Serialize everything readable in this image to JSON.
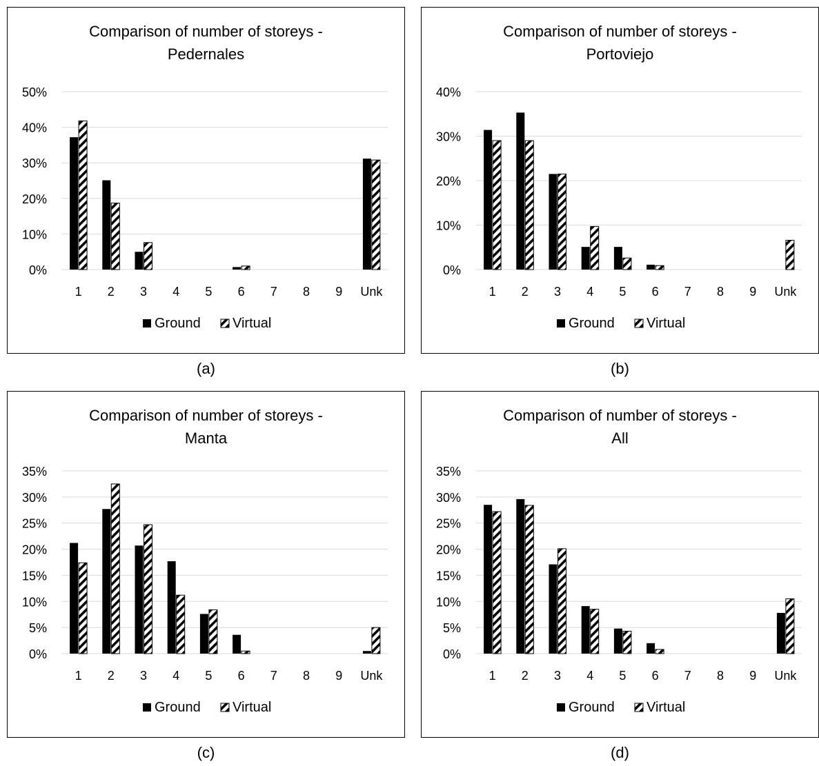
{
  "chart_data": [
    {
      "type": "bar",
      "title": "Comparison of number of storeys - Pedernales",
      "title_lines": [
        "Comparison of number of storeys -",
        "Pedernales"
      ],
      "caption": "(a)",
      "categories": [
        "1",
        "2",
        "3",
        "4",
        "5",
        "6",
        "7",
        "8",
        "9",
        "Unk"
      ],
      "ylim": [
        0,
        0.5
      ],
      "yticks": [
        0,
        0.1,
        0.2,
        0.3,
        0.4,
        0.5
      ],
      "ytick_labels": [
        "0%",
        "10%",
        "20%",
        "30%",
        "40%",
        "50%"
      ],
      "series": [
        {
          "name": "Ground",
          "values": [
            0.372,
            0.251,
            0.05,
            0,
            0,
            0.007,
            0,
            0,
            0,
            0.312
          ]
        },
        {
          "name": "Virtual",
          "values": [
            0.418,
            0.187,
            0.076,
            0,
            0,
            0.01,
            0,
            0,
            0,
            0.308
          ]
        }
      ],
      "grid": true,
      "legend": "bottom"
    },
    {
      "type": "bar",
      "title": "Comparison of number of storeys - Portoviejo",
      "title_lines": [
        "Comparison of number of storeys -",
        "Portoviejo"
      ],
      "caption": "(b)",
      "categories": [
        "1",
        "2",
        "3",
        "4",
        "5",
        "6",
        "7",
        "8",
        "9",
        "Unk"
      ],
      "ylim": [
        0,
        0.4
      ],
      "yticks": [
        0,
        0.1,
        0.2,
        0.3,
        0.4
      ],
      "ytick_labels": [
        "0%",
        "10%",
        "20%",
        "30%",
        "40%"
      ],
      "series": [
        {
          "name": "Ground",
          "values": [
            0.314,
            0.353,
            0.215,
            0.051,
            0.051,
            0.011,
            0,
            0,
            0,
            0
          ]
        },
        {
          "name": "Virtual",
          "values": [
            0.29,
            0.29,
            0.215,
            0.097,
            0.026,
            0.009,
            0,
            0,
            0,
            0.066
          ]
        }
      ],
      "grid": true,
      "legend": "bottom"
    },
    {
      "type": "bar",
      "title": "Comparison of number of storeys - Manta",
      "title_lines": [
        "Comparison of number of storeys -",
        "Manta"
      ],
      "caption": "(c)",
      "categories": [
        "1",
        "2",
        "3",
        "4",
        "5",
        "6",
        "7",
        "8",
        "9",
        "Unk"
      ],
      "ylim": [
        0,
        0.35
      ],
      "yticks": [
        0,
        0.05,
        0.1,
        0.15,
        0.2,
        0.25,
        0.3,
        0.35
      ],
      "ytick_labels": [
        "0%",
        "5%",
        "10%",
        "15%",
        "20%",
        "25%",
        "30%",
        "35%"
      ],
      "series": [
        {
          "name": "Ground",
          "values": [
            0.212,
            0.277,
            0.207,
            0.177,
            0.076,
            0.036,
            0,
            0,
            0,
            0.005
          ]
        },
        {
          "name": "Virtual",
          "values": [
            0.174,
            0.325,
            0.247,
            0.112,
            0.084,
            0.005,
            0,
            0,
            0,
            0.05
          ]
        }
      ],
      "grid": true,
      "legend": "bottom"
    },
    {
      "type": "bar",
      "title": "Comparison of number of storeys - All",
      "title_lines": [
        "Comparison of number of storeys -",
        "All"
      ],
      "caption": "(d)",
      "categories": [
        "1",
        "2",
        "3",
        "4",
        "5",
        "6",
        "7",
        "8",
        "9",
        "Unk"
      ],
      "ylim": [
        0,
        0.35
      ],
      "yticks": [
        0,
        0.05,
        0.1,
        0.15,
        0.2,
        0.25,
        0.3,
        0.35
      ],
      "ytick_labels": [
        "0%",
        "5%",
        "10%",
        "15%",
        "20%",
        "25%",
        "30%",
        "35%"
      ],
      "series": [
        {
          "name": "Ground",
          "values": [
            0.285,
            0.296,
            0.171,
            0.091,
            0.048,
            0.02,
            0,
            0,
            0,
            0.078
          ]
        },
        {
          "name": "Virtual",
          "values": [
            0.272,
            0.284,
            0.201,
            0.085,
            0.043,
            0.008,
            0,
            0,
            0,
            0.105
          ]
        }
      ],
      "grid": true,
      "legend": "bottom"
    }
  ],
  "colors": {
    "ground": "#000000",
    "virtual_stripe": "#000000",
    "virtual_bg": "#ffffff",
    "gridline": "#d9d9d9",
    "axis": "#d9d9d9",
    "border": "#000000"
  }
}
